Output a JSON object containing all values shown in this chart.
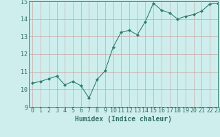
{
  "x": [
    0,
    1,
    2,
    3,
    4,
    5,
    6,
    7,
    8,
    9,
    10,
    11,
    12,
    13,
    14,
    15,
    16,
    17,
    18,
    19,
    20,
    21,
    22,
    23
  ],
  "y": [
    10.35,
    10.45,
    10.6,
    10.75,
    10.25,
    10.45,
    10.2,
    9.5,
    10.55,
    11.05,
    12.4,
    13.25,
    13.35,
    13.1,
    13.85,
    14.9,
    14.5,
    14.35,
    14.0,
    14.15,
    14.25,
    14.45,
    14.85,
    14.9
  ],
  "line_color": "#2e7d6e",
  "marker": "D",
  "marker_size": 2,
  "background_color": "#ceeeed",
  "grid_color": "#b8d8d6",
  "xlabel": "Humidex (Indice chaleur)",
  "ylim": [
    9,
    15
  ],
  "xlim": [
    -0.5,
    23
  ],
  "yticks": [
    9,
    10,
    11,
    12,
    13,
    14,
    15
  ],
  "xticks": [
    0,
    1,
    2,
    3,
    4,
    5,
    6,
    7,
    8,
    9,
    10,
    11,
    12,
    13,
    14,
    15,
    16,
    17,
    18,
    19,
    20,
    21,
    22,
    23
  ],
  "xlabel_fontsize": 7,
  "tick_fontsize": 6,
  "tick_color": "#2e6e64",
  "label_color": "#2e6e64",
  "spine_color": "#2e7d6e"
}
